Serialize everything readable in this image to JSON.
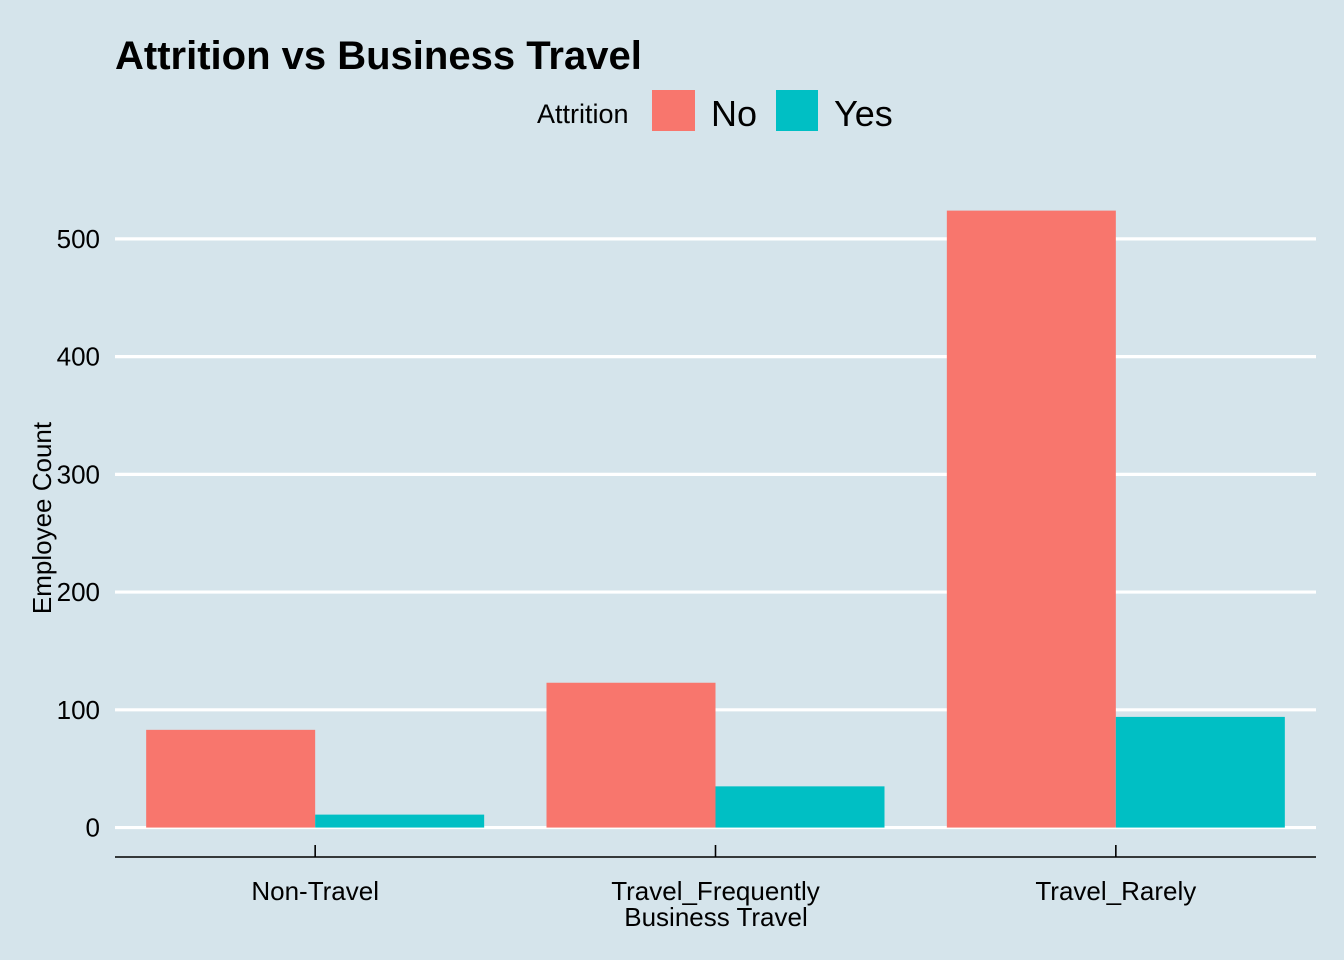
{
  "chart_data": {
    "type": "bar",
    "title": "Attrition vs Business Travel",
    "xlabel": "Business Travel",
    "ylabel": "Employee Count",
    "categories": [
      "Non-Travel",
      "Travel_Frequently",
      "Travel_Rarely"
    ],
    "legend_title": "Attrition",
    "legend_position": "top",
    "series": [
      {
        "name": "No",
        "color": "#f8766d",
        "values": [
          83,
          123,
          524
        ]
      },
      {
        "name": "Yes",
        "color": "#00bfc4",
        "values": [
          11,
          35,
          94
        ]
      }
    ],
    "yticks": [
      0,
      100,
      200,
      300,
      400,
      500
    ],
    "ylim": [
      -25,
      550
    ],
    "grid": "horizontal major",
    "background": "#d5e4eb"
  }
}
